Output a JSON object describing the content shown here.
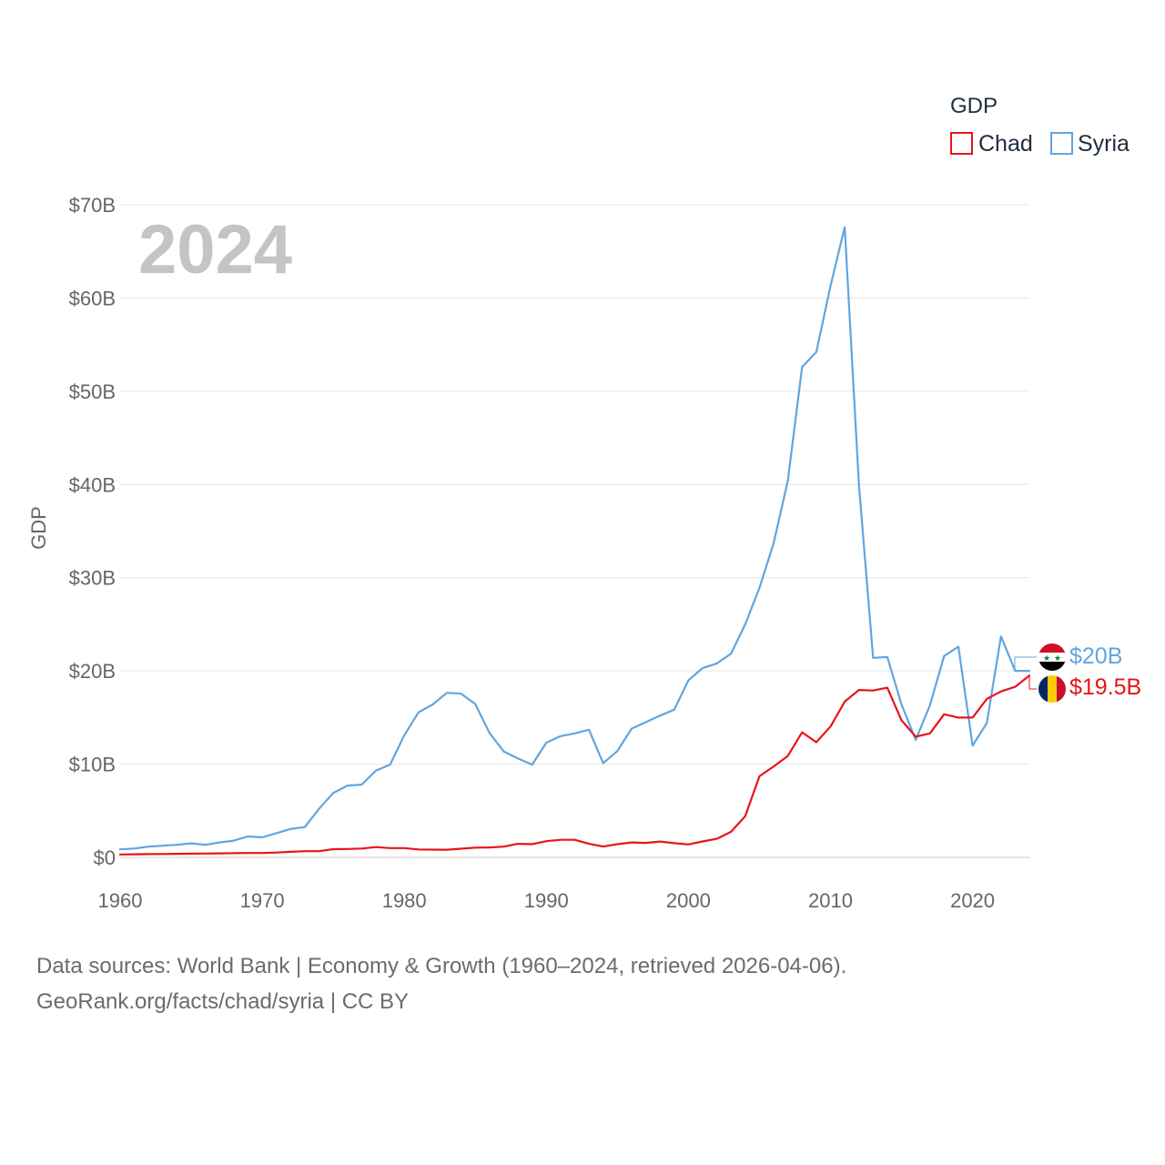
{
  "chart_data": {
    "type": "line",
    "title": "",
    "watermark_year": "2024",
    "ylabel": "GDP",
    "xlabel": "",
    "xlim": [
      1960,
      2024
    ],
    "ylim": [
      0,
      70
    ],
    "x_ticks": [
      1960,
      1970,
      1980,
      1990,
      2000,
      2010,
      2020
    ],
    "x_tick_labels": [
      "1960",
      "1970",
      "1980",
      "1990",
      "2000",
      "2010",
      "2020"
    ],
    "y_ticks": [
      0,
      10,
      20,
      30,
      40,
      50,
      60,
      70
    ],
    "y_tick_labels": [
      "$0",
      "$10B",
      "$20B",
      "$30B",
      "$40B",
      "$50B",
      "$60B",
      "$70B"
    ],
    "grid": true,
    "legend": {
      "title": "GDP",
      "placement": "top-right"
    },
    "x": [
      1960,
      1961,
      1962,
      1963,
      1964,
      1965,
      1966,
      1967,
      1968,
      1969,
      1970,
      1971,
      1972,
      1973,
      1974,
      1975,
      1976,
      1977,
      1978,
      1979,
      1980,
      1981,
      1982,
      1983,
      1984,
      1985,
      1986,
      1987,
      1988,
      1989,
      1990,
      1991,
      1992,
      1993,
      1994,
      1995,
      1996,
      1997,
      1998,
      1999,
      2000,
      2001,
      2002,
      2003,
      2004,
      2005,
      2006,
      2007,
      2008,
      2009,
      2010,
      2011,
      2012,
      2013,
      2014,
      2015,
      2016,
      2017,
      2018,
      2019,
      2020,
      2021,
      2022,
      2023,
      2024
    ],
    "series": [
      {
        "name": "Chad",
        "color": "#e8141a",
        "end_label": "$19.5B",
        "flag": "chad",
        "values": [
          0.31,
          0.33,
          0.35,
          0.36,
          0.38,
          0.4,
          0.41,
          0.43,
          0.45,
          0.47,
          0.47,
          0.52,
          0.6,
          0.66,
          0.66,
          0.88,
          0.9,
          0.95,
          1.1,
          1.0,
          1.0,
          0.85,
          0.83,
          0.82,
          0.93,
          1.04,
          1.06,
          1.15,
          1.45,
          1.42,
          1.74,
          1.88,
          1.88,
          1.45,
          1.16,
          1.42,
          1.6,
          1.55,
          1.7,
          1.52,
          1.39,
          1.71,
          1.99,
          2.74,
          4.42,
          8.7,
          9.75,
          10.88,
          13.41,
          12.35,
          14.04,
          16.7,
          17.95,
          17.9,
          18.2,
          14.7,
          12.95,
          13.3,
          15.35,
          15.0,
          15.0,
          17.0,
          17.8,
          18.3,
          19.5
        ]
      },
      {
        "name": "Syria",
        "color": "#60a5e1",
        "end_label": "$20B",
        "flag": "syria",
        "values": [
          0.86,
          0.95,
          1.15,
          1.25,
          1.35,
          1.5,
          1.35,
          1.6,
          1.8,
          2.25,
          2.15,
          2.6,
          3.05,
          3.25,
          5.2,
          6.9,
          7.7,
          7.8,
          9.3,
          9.95,
          13.1,
          15.55,
          16.4,
          17.65,
          17.55,
          16.45,
          13.35,
          11.35,
          10.6,
          9.95,
          12.3,
          13.0,
          13.3,
          13.7,
          10.1,
          11.4,
          13.8,
          14.5,
          15.2,
          15.85,
          19.0,
          20.3,
          20.8,
          21.85,
          25.0,
          28.9,
          33.7,
          40.4,
          52.6,
          54.2,
          61.3,
          67.6,
          40.0,
          21.4,
          21.5,
          16.4,
          12.6,
          16.3,
          21.6,
          22.6,
          12.0,
          14.4,
          23.7,
          20.0,
          20.0
        ]
      }
    ]
  },
  "footer": {
    "line1": "Data sources: World Bank | Economy & Growth (1960–2024, retrieved 2026-04-06).",
    "line2": "GeoRank.org/facts/chad/syria | CC BY"
  }
}
